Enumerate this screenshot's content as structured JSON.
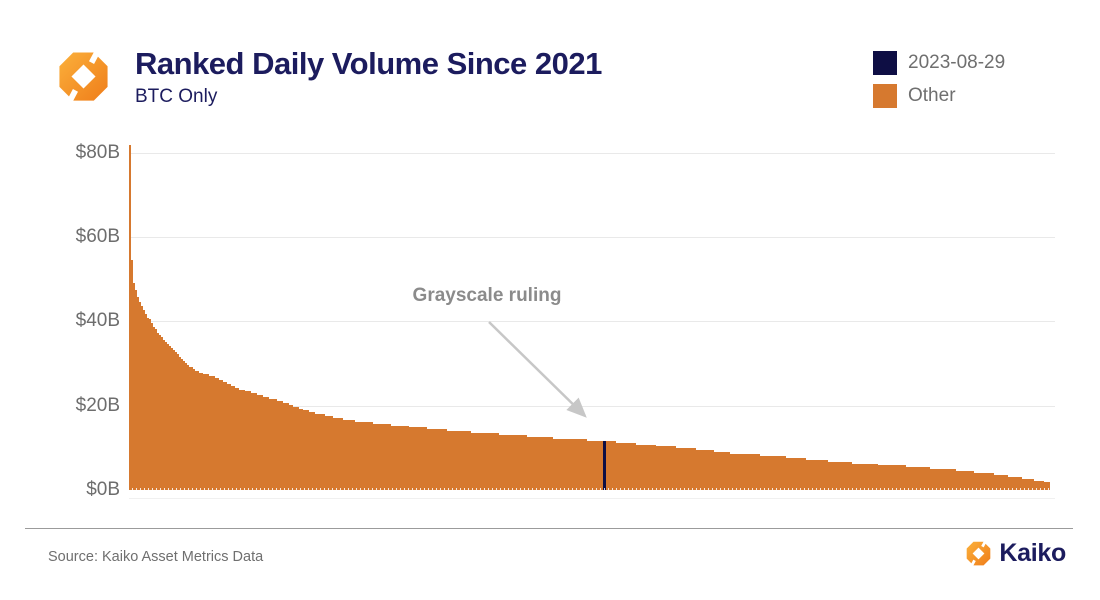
{
  "header": {
    "title": "Ranked Daily Volume Since 2021",
    "subtitle": "BTC Only"
  },
  "legend": {
    "items": [
      {
        "label": "2023-08-29",
        "color": "#0e0e44"
      },
      {
        "label": "Other",
        "color": "#d6792f"
      }
    ]
  },
  "annotation": {
    "text": "Grayscale ruling"
  },
  "footer": {
    "source": "Source: Kaiko Asset Metrics Data",
    "brand": "Kaiko"
  },
  "colors": {
    "bar_orange": "#d6792f",
    "highlight_navy": "#0e0e44",
    "title_navy": "#1c1c5e",
    "grid": "#e9e9e9",
    "gray_text": "#6f6f6f"
  },
  "chart_data": {
    "type": "bar",
    "title": "Ranked Daily Volume Since 2021",
    "subtitle": "BTC Only",
    "description": "Daily BTC trading volume since 2021, days ranked in descending order of volume",
    "unit": "USD billions",
    "xlabel": "",
    "ylabel": "",
    "ylim": [
      0,
      80
    ],
    "y_ticks": [
      "$80B",
      "$60B",
      "$40B",
      "$20B",
      "$0B"
    ],
    "grid": true,
    "legend_position": "top-right",
    "bar_color": "#d6792f",
    "n_bars_rendered": 460,
    "profile_points": [
      [
        0.0,
        82.0
      ],
      [
        0.002,
        55.0
      ],
      [
        0.004,
        49.5
      ],
      [
        0.009,
        45.5
      ],
      [
        0.013,
        43.5
      ],
      [
        0.022,
        40.2
      ],
      [
        0.033,
        36.8
      ],
      [
        0.044,
        34.0
      ],
      [
        0.054,
        31.8
      ],
      [
        0.065,
        29.5
      ],
      [
        0.076,
        28.0
      ],
      [
        0.098,
        26.3
      ],
      [
        0.12,
        24.0
      ],
      [
        0.141,
        22.5
      ],
      [
        0.163,
        21.2
      ],
      [
        0.2,
        18.3
      ],
      [
        0.235,
        16.7
      ],
      [
        0.271,
        15.8
      ],
      [
        0.307,
        15.0
      ],
      [
        0.344,
        14.2
      ],
      [
        0.38,
        13.6
      ],
      [
        0.415,
        13.1
      ],
      [
        0.452,
        12.5
      ],
      [
        0.49,
        12.0
      ],
      [
        0.517,
        11.7
      ],
      [
        0.566,
        10.7
      ],
      [
        0.611,
        9.8
      ],
      [
        0.656,
        8.7
      ],
      [
        0.702,
        8.1
      ],
      [
        0.746,
        7.2
      ],
      [
        0.792,
        6.4
      ],
      [
        0.845,
        5.6
      ],
      [
        0.9,
        4.7
      ],
      [
        0.945,
        3.7
      ],
      [
        0.975,
        2.8
      ],
      [
        1.0,
        1.8
      ]
    ],
    "highlight": {
      "label": "2023-08-29",
      "rank_fraction": 0.517,
      "value_billions": 11.7,
      "color": "#0e0e44"
    }
  }
}
